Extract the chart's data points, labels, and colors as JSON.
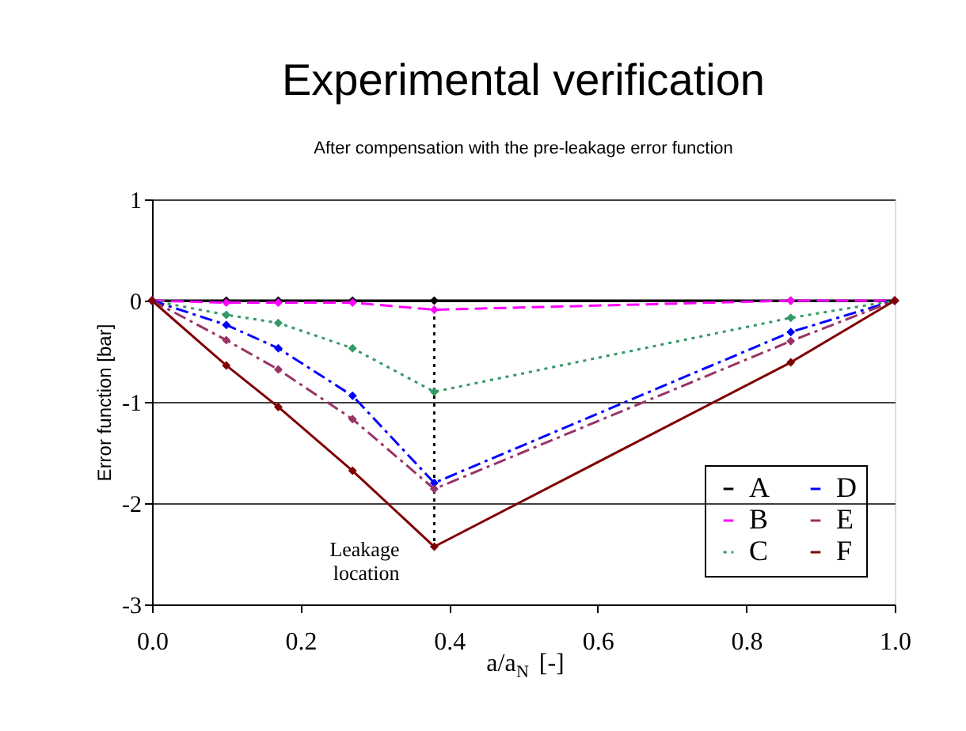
{
  "chart_data": {
    "type": "line",
    "title": "Experimental verification",
    "subtitle": "After compensation with the pre-leakage error function",
    "xlabel": "a/a$_{N}$ [-]",
    "ylabel": "Error function [bar]",
    "x": [
      0,
      0.1,
      0.17,
      0.27,
      0.38,
      0.86,
      1.0
    ],
    "series": [
      {
        "name": "A",
        "color": "#000000",
        "line_style": "solid",
        "values": [
          0,
          0,
          0,
          0,
          0,
          0,
          0
        ]
      },
      {
        "name": "B",
        "color": "#ff00ff",
        "line_style": "dashed",
        "values": [
          0,
          -0.02,
          -0.02,
          -0.02,
          -0.09,
          0,
          0
        ]
      },
      {
        "name": "C",
        "color": "#339966",
        "line_style": "dotted",
        "values": [
          0,
          -0.14,
          -0.22,
          -0.47,
          -0.9,
          -0.17,
          0
        ]
      },
      {
        "name": "D",
        "color": "#0000ff",
        "line_style": "dashdot",
        "values": [
          0,
          -0.24,
          -0.47,
          -0.94,
          -1.8,
          -0.31,
          0
        ]
      },
      {
        "name": "E",
        "color": "#993366",
        "line_style": "dashdot",
        "values": [
          0,
          -0.39,
          -0.68,
          -1.17,
          -1.86,
          -0.4,
          0
        ]
      },
      {
        "name": "F",
        "color": "#800000",
        "line_style": "solid",
        "values": [
          0,
          -0.64,
          -1.05,
          -1.68,
          -2.43,
          -0.61,
          0
        ]
      },
      {
        "type": "line",
        "color": "#000000",
        "line_style": "dotted",
        "marker": "none",
        "x": [
          0.38,
          0.38
        ],
        "values": [
          0,
          -2.43
        ]
      }
    ],
    "marker": "diamond",
    "xlim": [
      0,
      1.0
    ],
    "xticks": [
      {
        "value": 0,
        "label": "0.0"
      },
      {
        "value": 0.2,
        "label": "0.2"
      },
      {
        "value": 0.4,
        "label": "0.4"
      },
      {
        "value": 0.6,
        "label": "0.6"
      },
      {
        "value": 0.8,
        "label": "0.8"
      },
      {
        "value": 1.0,
        "label": "1.0"
      }
    ],
    "ylim": [
      -3,
      1
    ],
    "yticks": [
      -3,
      -2,
      -1,
      0,
      1
    ],
    "grid": "y",
    "legend": "bottom right",
    "annotations": [
      {
        "text": "Leakage location",
        "x": 0.38,
        "y": -2.43
      }
    ]
  }
}
